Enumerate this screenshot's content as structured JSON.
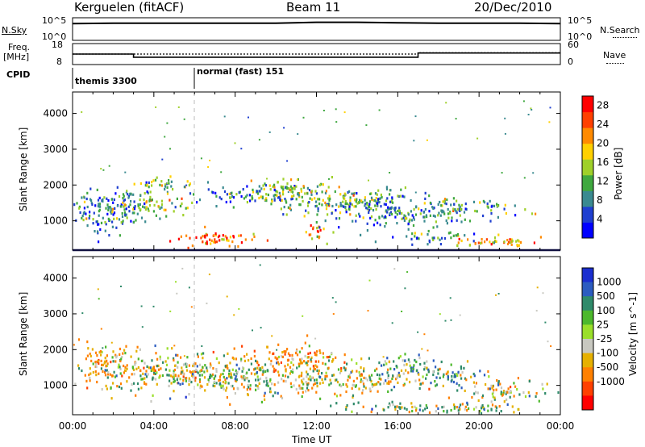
{
  "header": {
    "station": "Kerguelen (fitACF)",
    "beam": "Beam 11",
    "date": "20/Dec/2010"
  },
  "noise_panel": {
    "left_label": "N.Sky",
    "right_label": "N.Search",
    "left_ticks": [
      "10^5",
      "10^0"
    ],
    "right_ticks": [
      "10^5",
      "10^0"
    ]
  },
  "freq_panel": {
    "left_label_line1": "Freq.",
    "left_label_line2": "[MHz]",
    "right_label": "Nave",
    "left_ticks": [
      "18",
      "8"
    ],
    "right_ticks": [
      "60",
      "0"
    ]
  },
  "cpid_panel": {
    "label": "CPID",
    "modes": [
      {
        "name": "themis 3300",
        "start_hour": 0
      },
      {
        "name": "normal (fast) 151",
        "start_hour": 6
      }
    ]
  },
  "colors": {
    "power": [
      "#0000ff",
      "#1f3fd0",
      "#3a8a90",
      "#3fa83f",
      "#9fd02a",
      "#ffd000",
      "#ff8a00",
      "#ff4000",
      "#ff0000"
    ],
    "velocity": [
      "#1a2ecf",
      "#2c5cc0",
      "#2f8a6a",
      "#4cb82c",
      "#9adf2a",
      "#c8c8c0",
      "#e6b000",
      "#ff8000",
      "#ff4000",
      "#ff0000"
    ]
  },
  "chart_data": [
    {
      "type": "line",
      "title": "",
      "ylabel": "",
      "series": [
        {
          "name": "N.Sky",
          "hours": [
            0,
            2,
            4,
            6,
            8,
            10,
            12,
            14,
            16,
            18,
            20,
            22,
            24
          ],
          "log10_values": [
            3.7,
            3.8,
            3.8,
            3.8,
            3.8,
            3.8,
            4.0,
            4.0,
            3.9,
            3.8,
            3.8,
            3.8,
            3.7
          ]
        }
      ],
      "ylim": [
        0,
        5
      ],
      "xlim": [
        0,
        24
      ]
    },
    {
      "type": "line",
      "title": "",
      "ylabel": "",
      "series": [
        {
          "name": "Freq.",
          "hours": [
            0,
            3,
            3,
            17,
            17,
            24
          ],
          "values": [
            13,
            13,
            11.5,
            11.5,
            13.5,
            13.5
          ]
        },
        {
          "name": "Nave",
          "hours": [
            0,
            17,
            17,
            24
          ],
          "values": [
            30,
            30,
            34,
            34
          ]
        }
      ],
      "ylim": [
        8,
        18
      ],
      "y2lim": [
        0,
        60
      ],
      "xlim": [
        0,
        24
      ]
    },
    {
      "type": "heatmap",
      "title": "",
      "xlabel": "",
      "ylabel": "Slant Range [km]",
      "colorbar_label": "Power [dB]",
      "colorbar_ticks": [
        "28",
        "24",
        "20",
        "16",
        "12",
        "8",
        "4"
      ],
      "colorbar_range": [
        0,
        30
      ],
      "y_ticks": [
        "4000",
        "3000",
        "2000",
        "1000"
      ],
      "ylim": [
        180,
        4600
      ],
      "xlim": [
        0,
        24
      ],
      "blobs": [
        {
          "hour": 1.5,
          "range": 1300,
          "hw": 1.6,
          "rw": 650,
          "power": 8
        },
        {
          "hour": 3.5,
          "range": 1450,
          "hw": 2.0,
          "rw": 400,
          "power": 12
        },
        {
          "hour": 7.0,
          "range": 500,
          "hw": 2.2,
          "rw": 220,
          "power": 24
        },
        {
          "hour": 4.5,
          "range": 2050,
          "hw": 1.6,
          "rw": 180,
          "power": 14
        },
        {
          "hour": 8.5,
          "range": 1700,
          "hw": 2.0,
          "rw": 250,
          "power": 10
        },
        {
          "hour": 10.5,
          "range": 1900,
          "hw": 2.0,
          "rw": 350,
          "power": 14
        },
        {
          "hour": 12.0,
          "range": 700,
          "hw": 0.6,
          "rw": 250,
          "power": 22
        },
        {
          "hour": 12.0,
          "range": 1500,
          "hw": 2.5,
          "rw": 300,
          "power": 12
        },
        {
          "hour": 14.5,
          "range": 1600,
          "hw": 2.0,
          "rw": 350,
          "power": 12
        },
        {
          "hour": 16.0,
          "range": 1200,
          "hw": 2.5,
          "rw": 400,
          "power": 8
        },
        {
          "hour": 19.0,
          "range": 1400,
          "hw": 2.5,
          "rw": 300,
          "power": 10
        },
        {
          "hour": 20.5,
          "range": 450,
          "hw": 2.5,
          "rw": 150,
          "power": 18
        },
        {
          "hour": 18.0,
          "range": 550,
          "hw": 2.0,
          "rw": 150,
          "power": 10
        }
      ]
    },
    {
      "type": "heatmap",
      "title": "",
      "xlabel": "Time UT",
      "ylabel": "Slant Range [km]",
      "colorbar_label": "Velocity [m s^-1]",
      "colorbar_ticks": [
        "1000",
        "500",
        "100",
        "25",
        "-25",
        "-100",
        "-500",
        "-1000"
      ],
      "colorbar_range": [
        -1000,
        1000
      ],
      "x_ticks": [
        "00:00",
        "04:00",
        "08:00",
        "12:00",
        "16:00",
        "20:00",
        "00:00"
      ],
      "y_ticks": [
        "4000",
        "3000",
        "2000",
        "1000"
      ],
      "ylim": [
        180,
        4600
      ],
      "xlim": [
        0,
        24
      ],
      "blobs": [
        {
          "hour": 1.5,
          "range": 1600,
          "hw": 1.5,
          "rw": 500,
          "velocity": -120
        },
        {
          "hour": 5.0,
          "range": 1400,
          "hw": 3.5,
          "rw": 600,
          "velocity": 0
        },
        {
          "hour": 9.0,
          "range": 1200,
          "hw": 3.0,
          "rw": 500,
          "velocity": 0
        },
        {
          "hour": 11.0,
          "range": 1800,
          "hw": 2.5,
          "rw": 350,
          "velocity": -150
        },
        {
          "hour": 13.5,
          "range": 1200,
          "hw": 3.0,
          "rw": 450,
          "velocity": 0
        },
        {
          "hour": 16.5,
          "range": 1600,
          "hw": 1.5,
          "rw": 300,
          "velocity": 80
        },
        {
          "hour": 18.5,
          "range": 1300,
          "hw": 2.0,
          "rw": 300,
          "velocity": 120
        },
        {
          "hour": 17.5,
          "range": 400,
          "hw": 5.0,
          "rw": 150,
          "velocity": 60
        },
        {
          "hour": 21.0,
          "range": 900,
          "hw": 2.0,
          "rw": 300,
          "velocity": 0
        }
      ]
    }
  ]
}
